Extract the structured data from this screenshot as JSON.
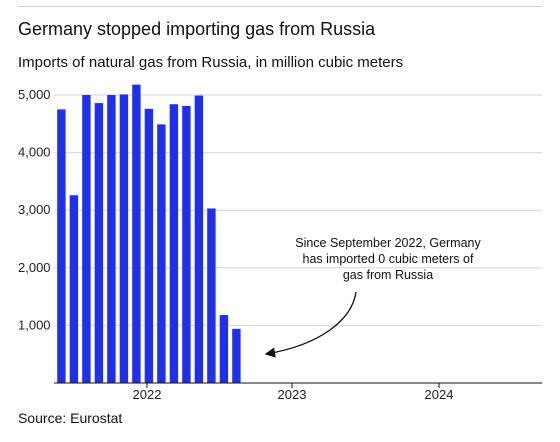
{
  "chart_data": {
    "type": "bar",
    "title": "Germany stopped importing gas from Russia",
    "subtitle": "Imports of natural gas from Russia, in million cubic meters",
    "source": "Source: Eurostat",
    "xlabel": "",
    "ylabel": "",
    "ylim": [
      0,
      5400
    ],
    "yticks": [
      1000,
      2000,
      3000,
      4000,
      5000
    ],
    "ytick_labels": [
      "1,000",
      "2,000",
      "3,000",
      "4,000",
      "5,000"
    ],
    "xtick_labels": [
      "2022",
      "2023",
      "2024"
    ],
    "grid": true,
    "color": "#1f2fee",
    "categories": [
      "2021-06",
      "2021-07",
      "2021-08",
      "2021-09",
      "2021-10",
      "2021-11",
      "2021-12",
      "2022-01",
      "2022-02",
      "2022-03",
      "2022-04",
      "2022-05",
      "2022-06",
      "2022-07",
      "2022-08"
    ],
    "values": [
      4750,
      3260,
      5000,
      4860,
      5000,
      5010,
      5180,
      4760,
      4490,
      4840,
      4810,
      4990,
      3030,
      1180,
      940
    ],
    "annotation": {
      "lines": [
        "Since September 2022, Germany",
        "has imported 0 cubic meters of",
        "gas from Russia"
      ]
    }
  }
}
